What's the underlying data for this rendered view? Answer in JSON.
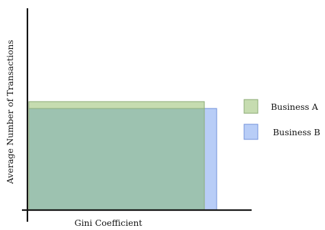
{
  "axes": {
    "xlabel": "Gini Coefficient",
    "ylabel": "Average Number of Transactions"
  },
  "legend": {
    "placement": "right",
    "items": [
      {
        "label": "Business A",
        "fill": "#c6dcb0",
        "stroke": "#88a872"
      },
      {
        "label": "Business B",
        "fill": "#b8cdf7",
        "stroke": "#6f8fd8"
      }
    ]
  },
  "colors": {
    "overlap": "#9dc2b0",
    "axis": "#111111"
  }
}
